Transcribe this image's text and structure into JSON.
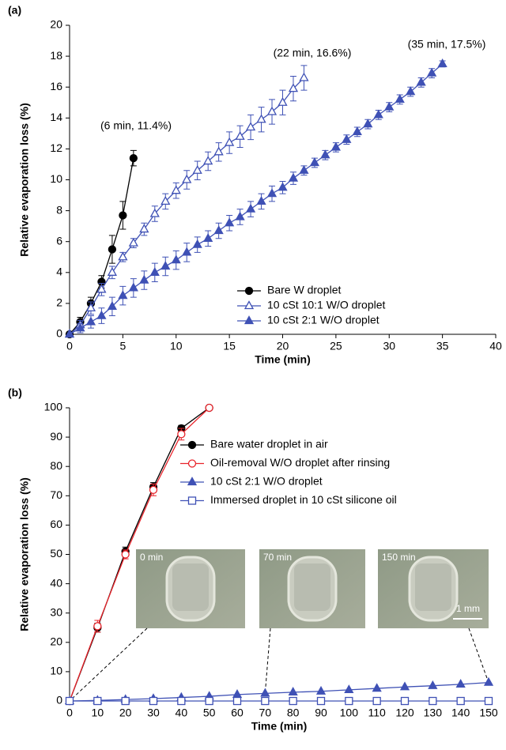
{
  "chart_data": [
    {
      "type": "line",
      "panel_label": "(a)",
      "xlabel": "Time (min)",
      "ylabel": "Relative evaporation loss (%)",
      "xlim": [
        0,
        40
      ],
      "xticks": [
        0,
        5,
        10,
        15,
        20,
        25,
        30,
        35,
        40
      ],
      "ylim": [
        0,
        20
      ],
      "yticks": [
        0,
        2,
        4,
        6,
        8,
        10,
        12,
        14,
        16,
        18,
        20
      ],
      "annotations": [
        "(6 min, 11.4%)",
        "(22 min, 16.6%)",
        "(35 min, 17.5%)"
      ],
      "series": [
        {
          "name": "Bare W droplet",
          "color": "#000000",
          "marker": "circle",
          "filled": true,
          "x": [
            0,
            1,
            2,
            3,
            4,
            5,
            6
          ],
          "values": [
            0,
            0.8,
            2.0,
            3.4,
            5.5,
            7.7,
            11.4
          ],
          "errors": [
            0,
            0.3,
            0.4,
            0.4,
            0.9,
            0.9,
            0.5
          ]
        },
        {
          "name": "10 cSt 10:1 W/O droplet",
          "color": "#3f51b5",
          "marker": "triangle",
          "filled": false,
          "x": [
            0,
            1,
            2,
            3,
            4,
            5,
            6,
            7,
            8,
            9,
            10,
            11,
            12,
            13,
            14,
            15,
            16,
            17,
            18,
            19,
            20,
            21,
            22
          ],
          "values": [
            0,
            0.6,
            1.7,
            2.9,
            4.0,
            5.0,
            5.9,
            6.8,
            7.8,
            8.6,
            9.3,
            10.0,
            10.6,
            11.2,
            11.8,
            12.4,
            12.8,
            13.4,
            13.9,
            14.4,
            15.0,
            15.9,
            16.6
          ],
          "errors": [
            0,
            0.3,
            0.4,
            0.4,
            0.4,
            0.3,
            0.3,
            0.4,
            0.5,
            0.5,
            0.5,
            0.6,
            0.6,
            0.6,
            0.6,
            0.7,
            0.7,
            0.8,
            0.8,
            0.8,
            0.8,
            0.8,
            0.8
          ]
        },
        {
          "name": "10 cSt 2:1 W/O droplet",
          "color": "#3f51b5",
          "marker": "triangle",
          "filled": true,
          "x": [
            0,
            1,
            2,
            3,
            4,
            5,
            6,
            7,
            8,
            9,
            10,
            11,
            12,
            13,
            14,
            15,
            16,
            17,
            18,
            19,
            20,
            21,
            22,
            23,
            24,
            25,
            26,
            27,
            28,
            29,
            30,
            31,
            32,
            33,
            34,
            35
          ],
          "values": [
            0,
            0.4,
            0.8,
            1.2,
            1.8,
            2.5,
            3.0,
            3.5,
            4.0,
            4.4,
            4.8,
            5.3,
            5.8,
            6.2,
            6.7,
            7.2,
            7.6,
            8.1,
            8.6,
            9.1,
            9.5,
            10.1,
            10.6,
            11.1,
            11.6,
            12.1,
            12.6,
            13.1,
            13.6,
            14.2,
            14.7,
            15.2,
            15.7,
            16.3,
            16.9,
            17.5
          ],
          "errors": [
            0,
            0.3,
            0.4,
            0.5,
            0.6,
            0.6,
            0.6,
            0.6,
            0.6,
            0.6,
            0.6,
            0.6,
            0.5,
            0.5,
            0.5,
            0.5,
            0.5,
            0.5,
            0.5,
            0.5,
            0.4,
            0.4,
            0.3,
            0.3,
            0.3,
            0.3,
            0.3,
            0.3,
            0.3,
            0.3,
            0.3,
            0.3,
            0.3,
            0.3,
            0.3,
            0.2
          ]
        }
      ]
    },
    {
      "type": "line",
      "panel_label": "(b)",
      "xlabel": "Time (min)",
      "ylabel": "Relative evaporation loss (%)",
      "xlim": [
        0,
        150
      ],
      "xticks": [
        0,
        10,
        20,
        30,
        40,
        50,
        60,
        70,
        80,
        90,
        100,
        110,
        120,
        130,
        140,
        150
      ],
      "ylim": [
        0,
        100
      ],
      "yticks": [
        0,
        10,
        20,
        30,
        40,
        50,
        60,
        70,
        80,
        90,
        100
      ],
      "insets": [
        "0 min",
        "70 min",
        "150 min"
      ],
      "scale_bar": "1 mm",
      "series": [
        {
          "name": "Bare water droplet in air",
          "color": "#000000",
          "marker": "circle",
          "filled": true,
          "x": [
            0,
            10,
            20,
            30,
            40,
            50
          ],
          "values": [
            0,
            25,
            51,
            73,
            93,
            100
          ],
          "errors": [
            0,
            1.5,
            1.5,
            1.5,
            1.0,
            0
          ]
        },
        {
          "name": "Oil-removal W/O droplet after rinsing",
          "color": "#e8232a",
          "marker": "circle",
          "filled": false,
          "x": [
            0,
            10,
            20,
            30,
            40,
            50
          ],
          "values": [
            0,
            25.5,
            50,
            72,
            91,
            100
          ],
          "errors": [
            0,
            2.0,
            1.5,
            2.0,
            2.0,
            0
          ]
        },
        {
          "name": "10 cSt 2:1 W/O droplet",
          "color": "#3f51b5",
          "marker": "triangle",
          "filled": true,
          "x": [
            0,
            10,
            20,
            30,
            40,
            50,
            60,
            70,
            80,
            90,
            100,
            110,
            120,
            130,
            140,
            150
          ],
          "values": [
            0,
            0.2,
            0.5,
            0.8,
            1.2,
            1.6,
            2.2,
            2.6,
            3.0,
            3.3,
            3.8,
            4.3,
            4.8,
            5.2,
            5.7,
            6.3
          ]
        },
        {
          "name": "Immersed droplet in 10 cSt silicone oil",
          "color": "#3f51b5",
          "marker": "square",
          "filled": false,
          "x": [
            0,
            10,
            20,
            30,
            40,
            50,
            60,
            70,
            80,
            90,
            100,
            110,
            120,
            130,
            140,
            150
          ],
          "values": [
            0,
            0,
            0,
            0,
            0,
            0,
            0,
            0,
            0,
            0,
            0,
            0,
            0,
            0,
            0,
            0
          ]
        }
      ]
    }
  ]
}
